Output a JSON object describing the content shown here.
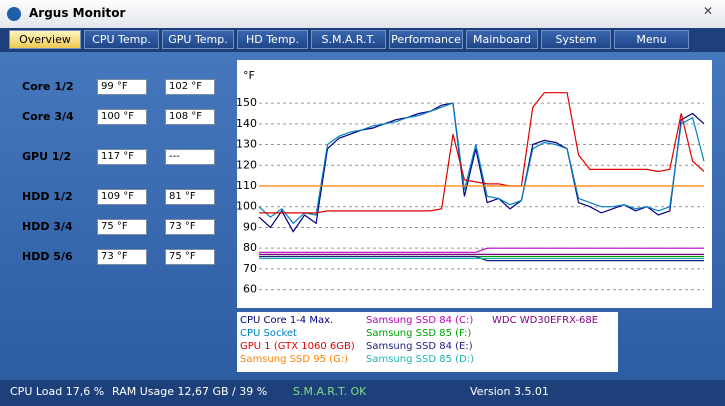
{
  "window": {
    "title": "Argus Monitor"
  },
  "tabs": [
    "Overview",
    "CPU Temp.",
    "GPU Temp.",
    "HD Temp.",
    "S.M.A.R.T.",
    "Performance",
    "Mainboard",
    "System",
    "Menu"
  ],
  "readings": [
    {
      "label": "Core 1/2",
      "values": [
        "99 °F",
        "102 °F"
      ]
    },
    {
      "label": "Core 3/4",
      "values": [
        "100 °F",
        "108 °F"
      ]
    },
    {
      "label": "GPU 1/2",
      "values": [
        "117 °F",
        "---"
      ]
    },
    {
      "label": "HDD 1/2",
      "values": [
        "109 °F",
        "81 °F"
      ]
    },
    {
      "label": "HDD 3/4",
      "values": [
        "75 °F",
        "73 °F"
      ]
    },
    {
      "label": "HDD 5/6",
      "values": [
        "73 °F",
        "75 °F"
      ]
    }
  ],
  "chart_data": {
    "type": "line",
    "y_label": "°F",
    "ylim": [
      55,
      165
    ],
    "yticks": [
      60,
      70,
      80,
      90,
      100,
      110,
      120,
      130,
      140,
      150
    ],
    "grid": true,
    "series": [
      {
        "name": "CPU Core 1-4 Max.",
        "color": "#000080",
        "values": [
          95,
          90,
          98,
          88,
          96,
          92,
          128,
          133,
          135,
          137,
          138,
          140,
          142,
          143,
          145,
          146,
          149,
          150,
          105,
          128,
          102,
          104,
          99,
          103,
          130,
          132,
          131,
          128,
          102,
          100,
          97,
          99,
          101,
          98,
          100,
          96,
          98,
          142,
          145,
          140
        ]
      },
      {
        "name": "CPU Socket",
        "color": "#0080c0",
        "values": [
          100,
          95,
          99,
          92,
          97,
          96,
          130,
          134,
          136,
          137,
          139,
          140,
          141,
          143,
          144,
          146,
          148,
          150,
          108,
          130,
          105,
          104,
          101,
          103,
          128,
          131,
          130,
          128,
          104,
          102,
          100,
          100,
          101,
          99,
          100,
          98,
          100,
          140,
          143,
          122
        ]
      },
      {
        "name": "GPU 1 (GTX 1060 6GB)",
        "color": "#e00000",
        "values": [
          97,
          97,
          97,
          97,
          97,
          97,
          98,
          98,
          98,
          98,
          98,
          98,
          98,
          98,
          98,
          98,
          99,
          135,
          113,
          112,
          111,
          111,
          110,
          110,
          148,
          155,
          155,
          155,
          125,
          118,
          118,
          118,
          118,
          118,
          118,
          117,
          118,
          145,
          122,
          117
        ]
      },
      {
        "name": "Samsung SSD 95 (G:)",
        "color": "#ff8000",
        "values": [
          110,
          110,
          110,
          110,
          110,
          110,
          110,
          110,
          110,
          110,
          110,
          110,
          110,
          110,
          110,
          110,
          110,
          110,
          110,
          110,
          110,
          110,
          110,
          110,
          110,
          110,
          110,
          110,
          110,
          110,
          110,
          110,
          110,
          110,
          110,
          110,
          110,
          110,
          110,
          110
        ]
      },
      {
        "name": "Samsung SSD 84 (C:)",
        "color": "#c000c0",
        "values": [
          78,
          78,
          78,
          78,
          78,
          78,
          78,
          78,
          78,
          78,
          78,
          78,
          78,
          78,
          78,
          78,
          78,
          78,
          78,
          78,
          80,
          80,
          80,
          80,
          80,
          80,
          80,
          80,
          80,
          80,
          80,
          80,
          80,
          80,
          80,
          80,
          80,
          80,
          80,
          80
        ]
      },
      {
        "name": "Samsung SSD 85 (F:)",
        "color": "#00a000",
        "values": [
          76,
          76,
          76,
          76,
          76,
          76,
          76,
          76,
          76,
          76,
          76,
          76,
          76,
          76,
          76,
          76,
          76,
          76,
          76,
          76,
          76,
          76,
          76,
          76,
          76,
          76,
          76,
          76,
          76,
          76,
          76,
          76,
          76,
          76,
          76,
          76,
          76,
          76,
          76,
          76
        ]
      },
      {
        "name": "Samsung SSD 84 (E:)",
        "color": "#202080",
        "values": [
          76,
          76,
          76,
          76,
          76,
          76,
          76,
          76,
          76,
          76,
          76,
          76,
          76,
          76,
          76,
          76,
          76,
          76,
          76,
          76,
          74,
          74,
          74,
          74,
          74,
          74,
          74,
          74,
          74,
          74,
          74,
          74,
          74,
          74,
          74,
          74,
          74,
          74,
          74,
          74
        ]
      },
      {
        "name": "Samsung SSD 85 (D:)",
        "color": "#20b0b0",
        "values": [
          75,
          75,
          75,
          75,
          75,
          75,
          75,
          75,
          75,
          75,
          75,
          75,
          75,
          75,
          75,
          75,
          75,
          75,
          75,
          75,
          75,
          75,
          75,
          75,
          75,
          75,
          75,
          75,
          75,
          75,
          75,
          75,
          75,
          75,
          75,
          75,
          75,
          75,
          75,
          75
        ]
      },
      {
        "name": "WDC WD30EFRX-68E",
        "color": "#800080",
        "values": [
          77,
          77,
          77,
          77,
          77,
          77,
          77,
          77,
          77,
          77,
          77,
          77,
          77,
          77,
          77,
          77,
          77,
          77,
          77,
          77,
          77,
          77,
          77,
          77,
          77,
          77,
          77,
          77,
          77,
          77,
          77,
          77,
          77,
          77,
          77,
          77,
          77,
          77,
          77,
          77
        ]
      }
    ]
  },
  "status": [
    "CPU Load 17,6 %",
    "RAM Usage 12,67 GB / 39 %",
    "S.M.A.R.T. OK",
    "Version 3.5.01"
  ]
}
